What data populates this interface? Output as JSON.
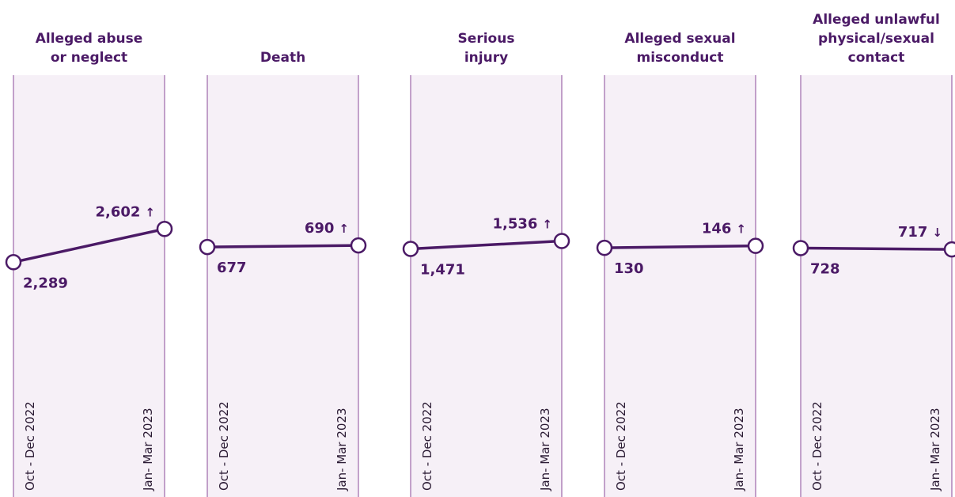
{
  "chart_data": [
    {
      "type": "line",
      "title": [
        "Alleged abuse",
        "or neglect"
      ],
      "categories": [
        "Oct - Dec 2022",
        "Jan- Mar 2023"
      ],
      "values": [
        2289,
        2602
      ],
      "value_labels": [
        "2,289",
        "2,602"
      ],
      "trend": "↑",
      "color": "#4b1a66",
      "ylim": [
        100,
        4050
      ]
    },
    {
      "type": "line",
      "title": [
        "Death"
      ],
      "categories": [
        "Oct - Dec 2022",
        "Jan- Mar 2023"
      ],
      "values": [
        677,
        690
      ],
      "trend": "↑",
      "color": "#4b1a66",
      "ylim": [
        -1360,
        2090
      ]
    },
    {
      "type": "line",
      "title": [
        "Serious",
        "injury"
      ],
      "categories": [
        "Oct - Dec 2022",
        "Jan- Mar 2023"
      ],
      "values": [
        1471,
        1536
      ],
      "value_labels": [
        "1,471",
        "1,536"
      ],
      "trend": "↑",
      "color": "#4b1a66",
      "ylim": [
        -550,
        2900
      ]
    },
    {
      "type": "line",
      "title": [
        "Alleged sexual",
        "misconduct"
      ],
      "categories": [
        "Oct - Dec 2022",
        "Jan- Mar 2023"
      ],
      "values": [
        130,
        146
      ],
      "trend": "↑",
      "color": "#4b1a66",
      "ylim": [
        -1900,
        1550
      ]
    },
    {
      "type": "line",
      "title": [
        "Alleged unlawful",
        "physical/sexual",
        "contact"
      ],
      "categories": [
        "Oct - Dec 2022",
        "Jan- Mar 2023"
      ],
      "values": [
        728,
        717
      ],
      "trend": "↓",
      "color": "#4b1a66",
      "ylim": [
        -1300,
        2150
      ]
    }
  ]
}
